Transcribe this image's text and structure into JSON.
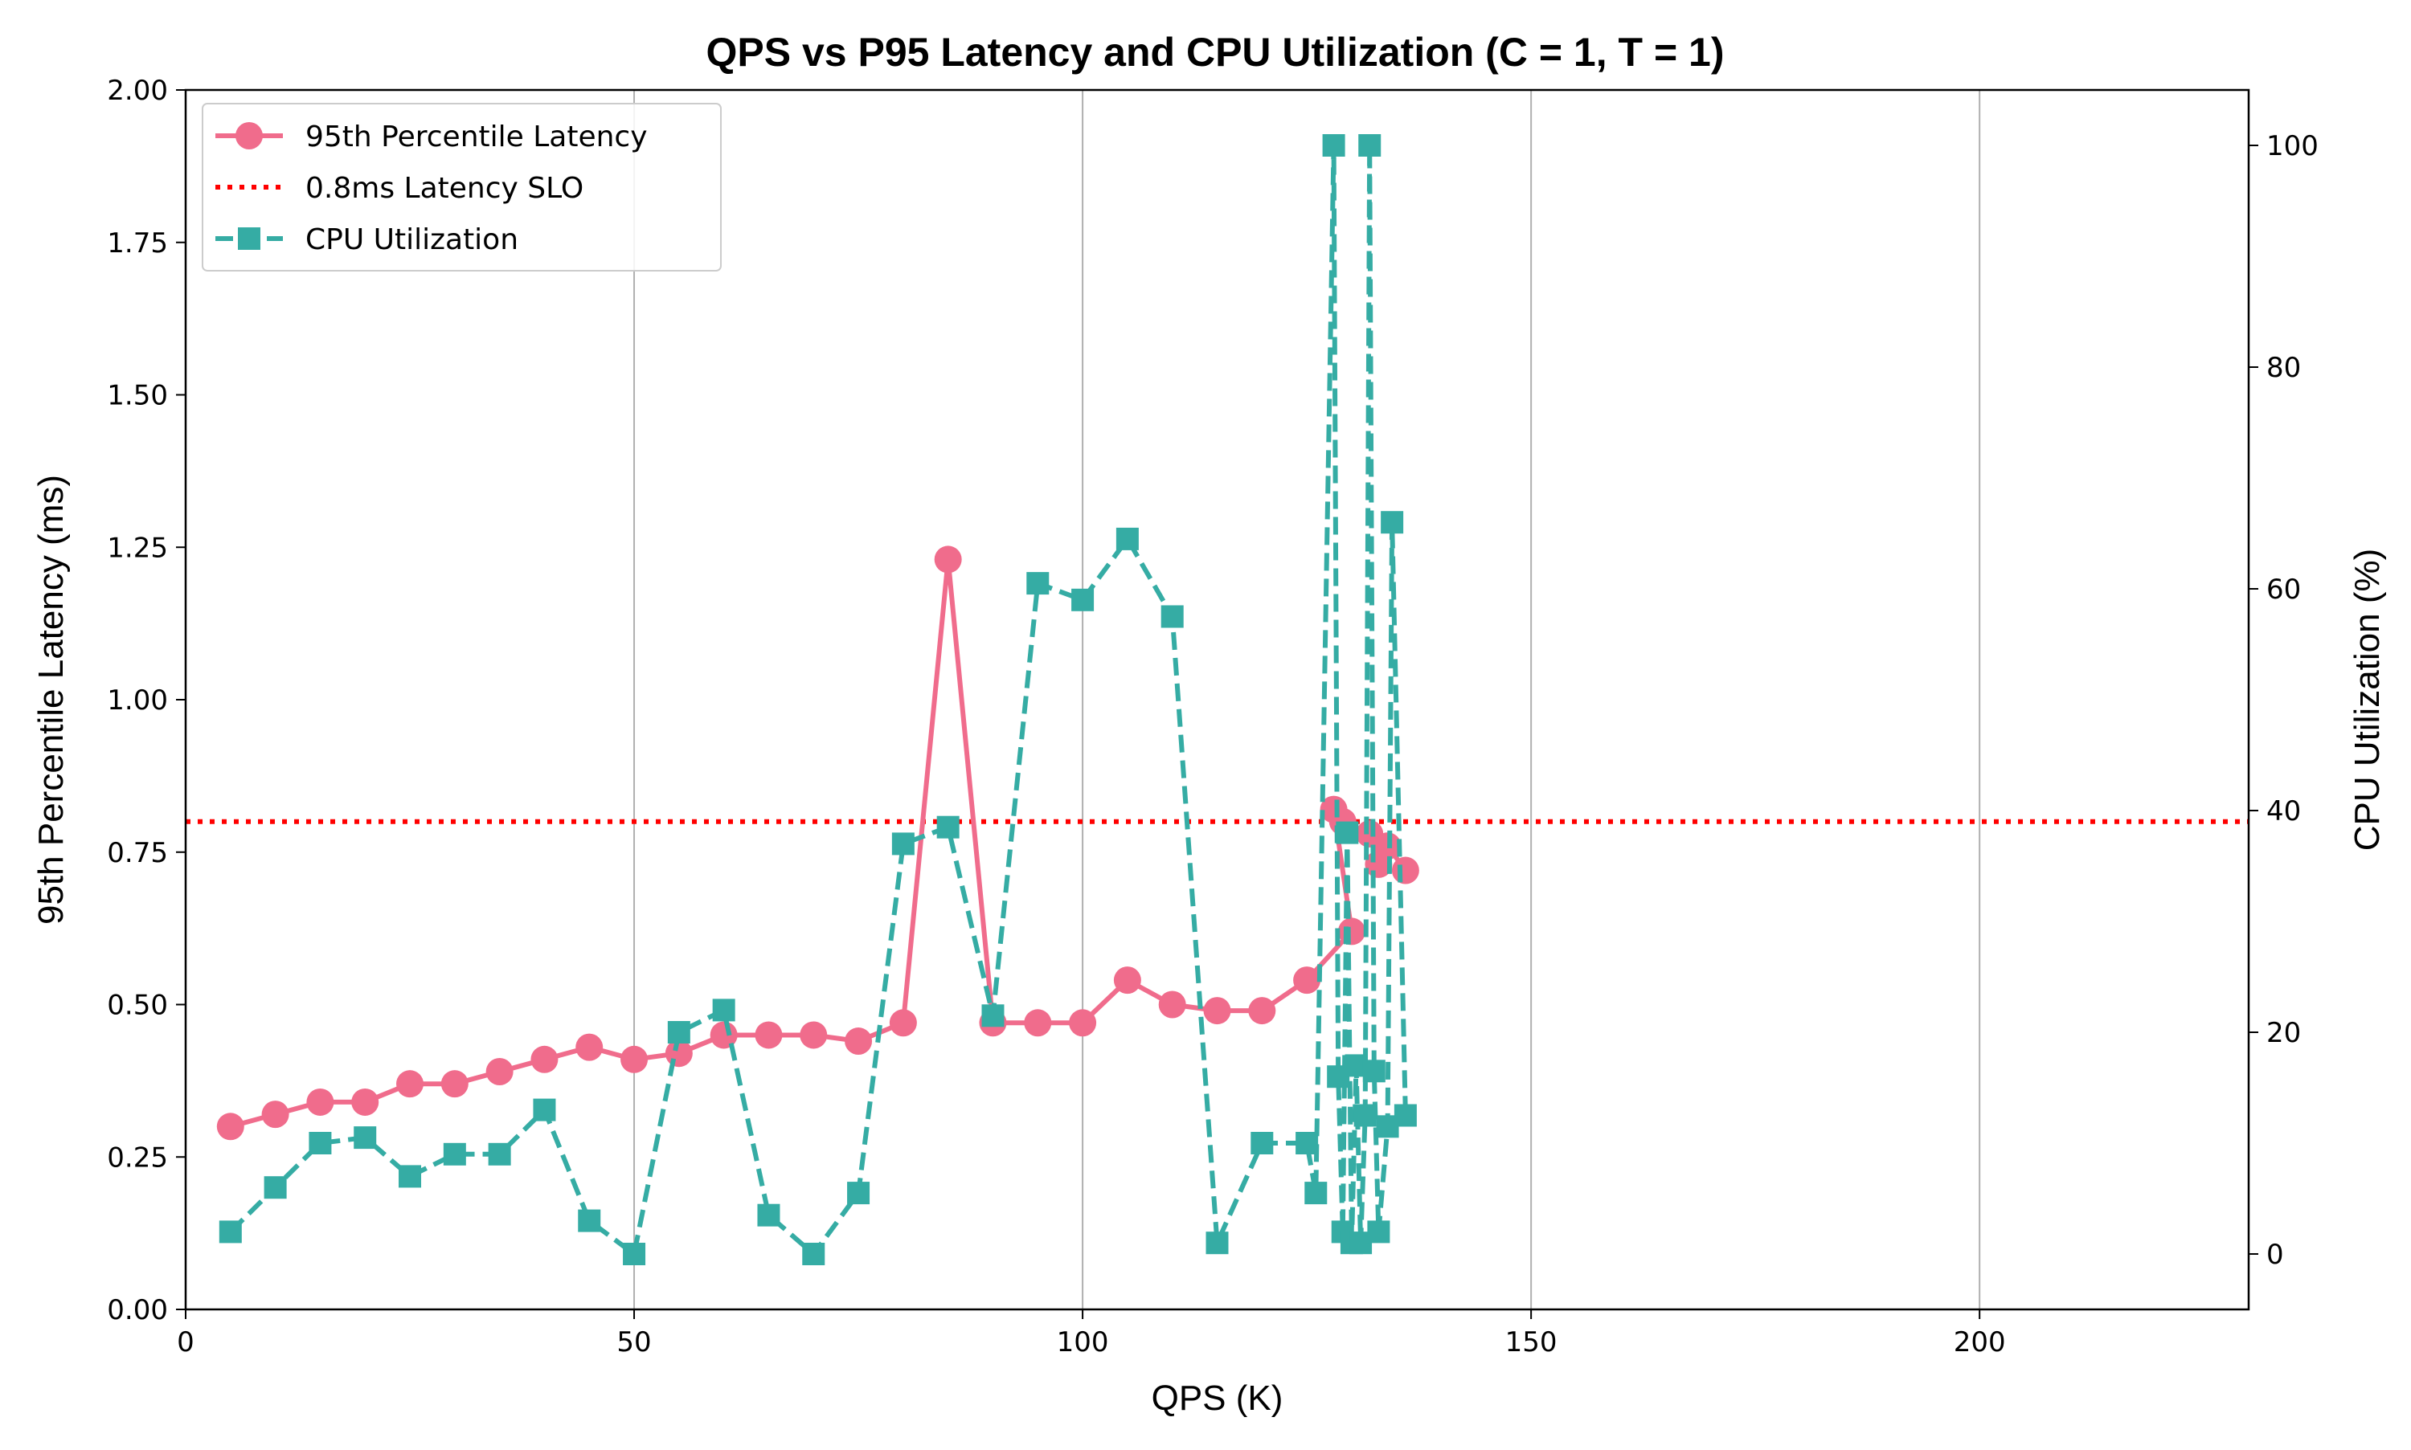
{
  "chart_data": {
    "type": "line",
    "title": "QPS vs P95 Latency and CPU Utilization (C = 1, T = 1)",
    "xlabel": "QPS (K)",
    "ylabel": "95th Percentile Latency (ms)",
    "y2label": "CPU Utilization (%)",
    "xlim": [
      0,
      230
    ],
    "ylim": [
      0,
      2.0
    ],
    "y2lim": [
      -5,
      105
    ],
    "xticks": [
      "0",
      "50",
      "100",
      "150",
      "200"
    ],
    "yticks": [
      "0.00",
      "0.25",
      "0.50",
      "0.75",
      "1.00",
      "1.25",
      "1.50",
      "1.75",
      "2.00"
    ],
    "y2ticks": [
      "0",
      "20",
      "40",
      "60",
      "80",
      "100"
    ],
    "grid": "vertical",
    "legend_position": "upper-left",
    "series": [
      {
        "name": "95th Percentile Latency",
        "axis": "left",
        "style": "solid-circle",
        "color": "#f06c8c",
        "points": [
          [
            5,
            0.3
          ],
          [
            10,
            0.32
          ],
          [
            15,
            0.34
          ],
          [
            20,
            0.34
          ],
          [
            25,
            0.37
          ],
          [
            30,
            0.37
          ],
          [
            35,
            0.39
          ],
          [
            40,
            0.41
          ],
          [
            45,
            0.43
          ],
          [
            50,
            0.41
          ],
          [
            55,
            0.42
          ],
          [
            60,
            0.45
          ],
          [
            65,
            0.45
          ],
          [
            70,
            0.45
          ],
          [
            75,
            0.44
          ],
          [
            80,
            0.47
          ],
          [
            85,
            1.23
          ],
          [
            90,
            0.47
          ],
          [
            95,
            0.47
          ],
          [
            100,
            0.47
          ],
          [
            105,
            0.54
          ],
          [
            110,
            0.5
          ],
          [
            115,
            0.49
          ],
          [
            120,
            0.49
          ],
          [
            125,
            0.54
          ],
          [
            130,
            0.62
          ],
          [
            128,
            0.82
          ],
          [
            129,
            0.8
          ],
          [
            132,
            0.78
          ],
          [
            133,
            0.73
          ],
          [
            134,
            0.76
          ],
          [
            136,
            0.72
          ]
        ]
      },
      {
        "name": "0.8ms Latency SLO",
        "axis": "left",
        "style": "dotted",
        "color": "#ff0000",
        "value": 0.8
      },
      {
        "name": "CPU Utilization",
        "axis": "right",
        "style": "dashed-square",
        "color": "#35aca4",
        "points": [
          [
            5,
            2
          ],
          [
            10,
            6
          ],
          [
            15,
            10
          ],
          [
            20,
            10.5
          ],
          [
            25,
            7
          ],
          [
            30,
            9
          ],
          [
            35,
            9
          ],
          [
            40,
            13
          ],
          [
            45,
            3
          ],
          [
            50,
            0
          ],
          [
            55,
            20
          ],
          [
            60,
            22
          ],
          [
            65,
            3.5
          ],
          [
            70,
            0
          ],
          [
            75,
            5.5
          ],
          [
            80,
            37
          ],
          [
            85,
            38.5
          ],
          [
            90,
            21.5
          ],
          [
            95,
            60.5
          ],
          [
            100,
            59
          ],
          [
            105,
            64.5
          ],
          [
            110,
            57.5
          ],
          [
            115,
            1
          ],
          [
            120,
            10
          ],
          [
            125,
            10
          ],
          [
            126,
            5.5
          ],
          [
            128,
            100
          ],
          [
            128.5,
            16
          ],
          [
            129,
            2
          ],
          [
            129.5,
            38
          ],
          [
            130,
            1
          ],
          [
            130.5,
            17
          ],
          [
            131,
            1
          ],
          [
            131.5,
            12.5
          ],
          [
            132,
            100
          ],
          [
            132.5,
            16.5
          ],
          [
            133,
            2
          ],
          [
            134,
            11.5
          ],
          [
            134.5,
            66
          ],
          [
            136,
            12.5
          ]
        ]
      }
    ]
  }
}
